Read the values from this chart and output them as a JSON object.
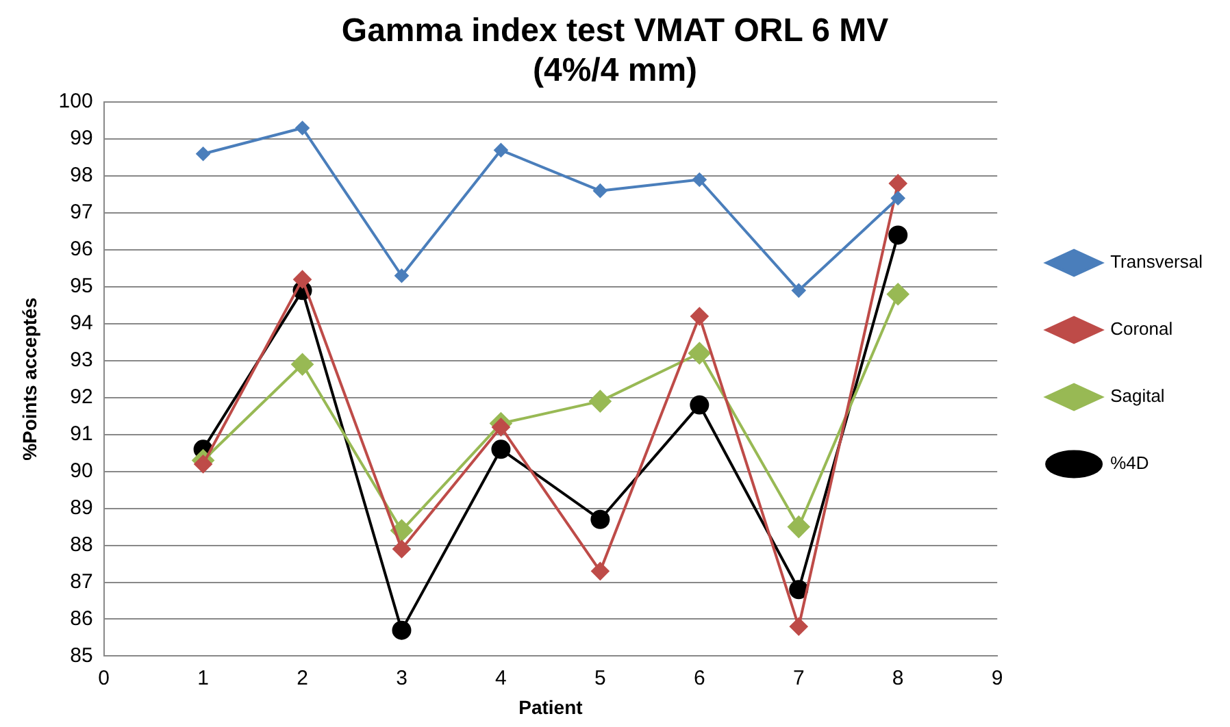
{
  "chart_data": {
    "type": "line",
    "title": "Gamma index test VMAT ORL 6 MV\n(4%/4 mm)",
    "xlabel": "Patient",
    "ylabel": "%Points acceptés",
    "x": [
      1,
      2,
      3,
      4,
      5,
      6,
      7,
      8
    ],
    "series": [
      {
        "name": "Transversal",
        "color": "#4a7ebb",
        "marker": "diamond",
        "values": [
          98.6,
          99.3,
          95.3,
          98.7,
          97.6,
          97.9,
          94.9,
          97.4
        ]
      },
      {
        "name": "Coronal",
        "color": "#be4b48",
        "marker": "diamond",
        "values": [
          90.2,
          95.2,
          87.9,
          91.2,
          87.3,
          94.2,
          85.8,
          97.8
        ]
      },
      {
        "name": "Sagital",
        "color": "#98b954",
        "marker": "diamond",
        "values": [
          90.3,
          92.9,
          88.4,
          91.3,
          91.9,
          93.2,
          88.5,
          94.8
        ]
      },
      {
        "name": "%4D",
        "color": "#000000",
        "marker": "circle",
        "values": [
          90.6,
          94.9,
          85.7,
          90.6,
          88.7,
          91.8,
          86.8,
          96.4
        ]
      }
    ],
    "xlim": [
      0,
      9
    ],
    "xticks": [
      0,
      1,
      2,
      3,
      4,
      5,
      6,
      7,
      8,
      9
    ],
    "ylim": [
      85,
      100
    ],
    "yticks": [
      85,
      86,
      87,
      88,
      89,
      90,
      91,
      92,
      93,
      94,
      95,
      96,
      97,
      98,
      99,
      100
    ],
    "grid": "y",
    "legend": "right"
  }
}
